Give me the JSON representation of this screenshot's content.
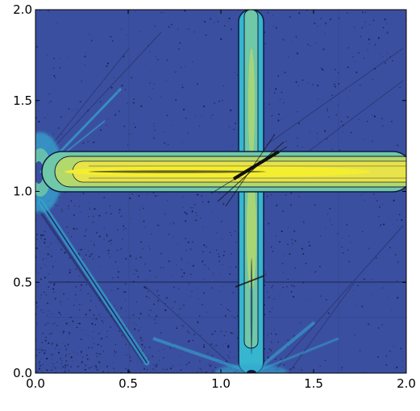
{
  "chart_data": {
    "type": "heatmap",
    "title": "",
    "xlabel": "",
    "ylabel": "",
    "xlim": [
      0.0,
      2.0
    ],
    "ylim": [
      0.0,
      2.0
    ],
    "x_ticks": [
      0.0,
      0.5,
      1.0,
      1.5,
      2.0
    ],
    "y_ticks": [
      0.0,
      0.5,
      1.0,
      1.5,
      2.0
    ],
    "x_tick_labels": [
      "0.0",
      "0.5",
      "1.0",
      "1.5",
      "2.0"
    ],
    "y_tick_labels": [
      "0.0",
      "0.5",
      "1.0",
      "1.5",
      "2.0"
    ],
    "grid": false,
    "legend": "none",
    "colormap": [
      "#3b4fa0",
      "#3a86c8",
      "#36b6cf",
      "#6fc8a8",
      "#b3d86c",
      "#e8e34a",
      "#f4ee30"
    ],
    "background_color": "#3b4fa0",
    "features": [
      {
        "name": "horizontal-band",
        "from": [
          0.02,
          1.15
        ],
        "to": [
          2.0,
          1.15
        ],
        "level": "high"
      },
      {
        "name": "vertical-band",
        "from": [
          1.12,
          0.08
        ],
        "to": [
          1.12,
          2.0
        ],
        "level": "medium"
      },
      {
        "name": "diagonal-streak",
        "from": [
          0.02,
          1.15
        ],
        "to": [
          0.58,
          0.2
        ],
        "level": "low"
      },
      {
        "name": "horizontal-line",
        "from": [
          0.1,
          0.58
        ],
        "to": [
          2.0,
          0.58
        ],
        "level": "low"
      }
    ]
  }
}
